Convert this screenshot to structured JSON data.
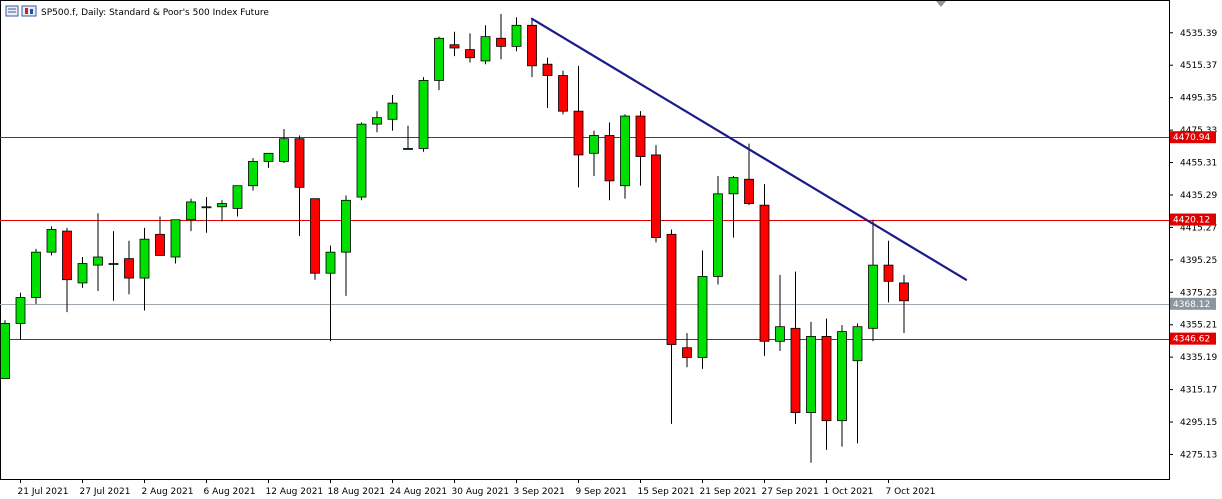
{
  "header": {
    "symbol_line": "SP500.f, Daily:  Standard & Poor's 500 Index Future",
    "icons": [
      "chart-window-icon",
      "chart-type-icon"
    ]
  },
  "colors": {
    "bull": "#00e000",
    "bear": "#ff0000",
    "wick": "#000000",
    "level_line": "#e00000",
    "trend_line": "#1a1a8c",
    "current_line": "#a0a8b0",
    "current_tag": "#8a96a0"
  },
  "chart_data": {
    "type": "candlestick",
    "title": "SP500.f, Daily:  Standard & Poor's 500 Index Future",
    "ylim": [
      4260,
      4555
    ],
    "y_ticks": [
      "4535.39",
      "4515.37",
      "4495.35",
      "4475.33",
      "4455.31",
      "4435.29",
      "4415.27",
      "4395.25",
      "4375.23",
      "4355.21",
      "4335.19",
      "4315.17",
      "4295.15",
      "4275.13"
    ],
    "x_labels": [
      "21 Jul 2021",
      "27 Jul 2021",
      "2 Aug 2021",
      "6 Aug 2021",
      "12 Aug 2021",
      "18 Aug 2021",
      "24 Aug 2021",
      "30 Aug 2021",
      "3 Sep 2021",
      "9 Sep 2021",
      "15 Sep 2021",
      "21 Sep 2021",
      "27 Sep 2021",
      "1 Oct 2021",
      "7 Oct 2021"
    ],
    "x_label_bar_index": [
      1,
      5,
      9,
      13,
      17,
      21,
      25,
      29,
      33,
      37,
      41,
      45,
      49,
      53,
      57
    ],
    "candles": [
      {
        "o": 4322,
        "h": 4358,
        "l": 4322,
        "c": 4356
      },
      {
        "o": 4356,
        "h": 4375,
        "l": 4346,
        "c": 4372
      },
      {
        "o": 4372,
        "h": 4402,
        "l": 4368,
        "c": 4400
      },
      {
        "o": 4400,
        "h": 4416,
        "l": 4398,
        "c": 4414
      },
      {
        "o": 4413,
        "h": 4415,
        "l": 4363,
        "c": 4383
      },
      {
        "o": 4381,
        "h": 4397,
        "l": 4378,
        "c": 4393
      },
      {
        "o": 4392,
        "h": 4424,
        "l": 4376,
        "c": 4397
      },
      {
        "o": 4393,
        "h": 4413,
        "l": 4370,
        "c": 4393
      },
      {
        "o": 4396,
        "h": 4407,
        "l": 4374,
        "c": 4384
      },
      {
        "o": 4384,
        "h": 4415,
        "l": 4364,
        "c": 4408
      },
      {
        "o": 4411,
        "h": 4422,
        "l": 4399,
        "c": 4398
      },
      {
        "o": 4397,
        "h": 4420,
        "l": 4393,
        "c": 4420
      },
      {
        "o": 4420,
        "h": 4433,
        "l": 4413,
        "c": 4431
      },
      {
        "o": 4428,
        "h": 4434,
        "l": 4412,
        "c": 4428
      },
      {
        "o": 4428,
        "h": 4432,
        "l": 4419,
        "c": 4430
      },
      {
        "o": 4427,
        "h": 4441,
        "l": 4422,
        "c": 4441
      },
      {
        "o": 4441,
        "h": 4458,
        "l": 4438,
        "c": 4456
      },
      {
        "o": 4456,
        "h": 4461,
        "l": 4452,
        "c": 4461
      },
      {
        "o": 4456,
        "h": 4476,
        "l": 4455,
        "c": 4470
      },
      {
        "o": 4470,
        "h": 4472,
        "l": 4410,
        "c": 4440
      },
      {
        "o": 4433,
        "h": 4433,
        "l": 4383,
        "c": 4387
      },
      {
        "o": 4387,
        "h": 4404,
        "l": 4345,
        "c": 4400
      },
      {
        "o": 4400,
        "h": 4435,
        "l": 4373,
        "c": 4432
      },
      {
        "o": 4434,
        "h": 4480,
        "l": 4432,
        "c": 4479
      },
      {
        "o": 4479,
        "h": 4487,
        "l": 4474,
        "c": 4483
      },
      {
        "o": 4482,
        "h": 4497,
        "l": 4475,
        "c": 4492
      },
      {
        "o": 4464,
        "h": 4478,
        "l": 4464,
        "c": 4464
      },
      {
        "o": 4464,
        "h": 4508,
        "l": 4462,
        "c": 4506
      },
      {
        "o": 4506,
        "h": 4533,
        "l": 4500,
        "c": 4532
      },
      {
        "o": 4528,
        "h": 4536,
        "l": 4521,
        "c": 4526
      },
      {
        "o": 4525,
        "h": 4535,
        "l": 4517,
        "c": 4520
      },
      {
        "o": 4518,
        "h": 4540,
        "l": 4516,
        "c": 4533
      },
      {
        "o": 4532,
        "h": 4547,
        "l": 4519,
        "c": 4527
      },
      {
        "o": 4527,
        "h": 4545,
        "l": 4524,
        "c": 4540
      },
      {
        "o": 4540,
        "h": 4544,
        "l": 4508,
        "c": 4515
      },
      {
        "o": 4516,
        "h": 4520,
        "l": 4489,
        "c": 4509
      },
      {
        "o": 4509,
        "h": 4512,
        "l": 4485,
        "c": 4487
      },
      {
        "o": 4487,
        "h": 4515,
        "l": 4440,
        "c": 4460
      },
      {
        "o": 4461,
        "h": 4475,
        "l": 4447,
        "c": 4472
      },
      {
        "o": 4472,
        "h": 4480,
        "l": 4432,
        "c": 4444
      },
      {
        "o": 4441,
        "h": 4485,
        "l": 4433,
        "c": 4484
      },
      {
        "o": 4484,
        "h": 4487,
        "l": 4441,
        "c": 4459
      },
      {
        "o": 4460,
        "h": 4466,
        "l": 4406,
        "c": 4409
      },
      {
        "o": 4411,
        "h": 4414,
        "l": 4294,
        "c": 4343
      },
      {
        "o": 4341,
        "h": 4350,
        "l": 4329,
        "c": 4335
      },
      {
        "o": 4335,
        "h": 4401,
        "l": 4328,
        "c": 4385
      },
      {
        "o": 4385,
        "h": 4447,
        "l": 4380,
        "c": 4436
      },
      {
        "o": 4436,
        "h": 4447,
        "l": 4409,
        "c": 4446
      },
      {
        "o": 4445,
        "h": 4467,
        "l": 4429,
        "c": 4430
      },
      {
        "o": 4429,
        "h": 4442,
        "l": 4336,
        "c": 4345
      },
      {
        "o": 4345,
        "h": 4386,
        "l": 4339,
        "c": 4354
      },
      {
        "o": 4353,
        "h": 4388,
        "l": 4294,
        "c": 4301
      },
      {
        "o": 4301,
        "h": 4357,
        "l": 4270,
        "c": 4348
      },
      {
        "o": 4348,
        "h": 4359,
        "l": 4278,
        "c": 4296
      },
      {
        "o": 4296,
        "h": 4355,
        "l": 4280,
        "c": 4351
      },
      {
        "o": 4333,
        "h": 4356,
        "l": 4282,
        "c": 4354
      },
      {
        "o": 4353,
        "h": 4420,
        "l": 4345,
        "c": 4392
      },
      {
        "o": 4392,
        "h": 4407,
        "l": 4369,
        "c": 4382
      },
      {
        "o": 4381,
        "h": 4386,
        "l": 4350,
        "c": 4370
      }
    ],
    "horizontal_levels": [
      {
        "price": 4470.94,
        "label": "4470.94",
        "kind": "resistance"
      },
      {
        "price": 4420.12,
        "label": "4420.12",
        "kind": "resistance"
      },
      {
        "price": 4346.62,
        "label": "4346.62",
        "kind": "support"
      }
    ],
    "current_price": {
      "price": 4368.12,
      "label": "4368.12"
    },
    "trend_line": {
      "from": {
        "bar": 34,
        "price": 4544
      },
      "to": {
        "bar": 62,
        "price": 4383
      }
    }
  }
}
